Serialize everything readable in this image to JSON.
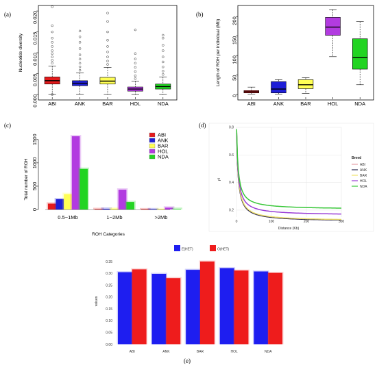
{
  "colors": {
    "ABI": "#e41a1c",
    "ANK": "#1f1fd6",
    "BAR": "#ffff55",
    "HOL": "#b23be0",
    "NDA": "#22d422",
    "d_ABI": "#e6a0a6",
    "d_ANK": "#2b2b50",
    "d_BAR": "#f0e36c",
    "d_HOL": "#9a3ed6",
    "d_NDA": "#39c739"
  },
  "chart_data": [
    {
      "panel": "(a)",
      "type": "box",
      "ylabel": "Nucleotide diversity",
      "ylim": [
        0,
        0.021
      ],
      "yticks": [
        "0.000",
        "0.005",
        "0.010",
        "0.015",
        "0.020"
      ],
      "categories": [
        "ABI",
        "ANK",
        "BAR",
        "HOL",
        "NDA"
      ],
      "boxes": [
        {
          "min": 0.0,
          "q1": 0.0025,
          "median": 0.0033,
          "q3": 0.0042,
          "max": 0.0068,
          "outliers": [
            0.0075,
            0.0082,
            0.009,
            0.0098,
            0.0105,
            0.0115,
            0.0125,
            0.0135,
            0.015,
            0.0165,
            0.021,
            0.0
          ]
        },
        {
          "min": 0.0,
          "q1": 0.0021,
          "median": 0.0027,
          "q3": 0.0033,
          "max": 0.0052,
          "outliers": [
            0.0058,
            0.0066,
            0.0075,
            0.0085,
            0.0095,
            0.011,
            0.0125,
            0.0138,
            0.0152
          ]
        },
        {
          "min": 0.0,
          "q1": 0.0025,
          "median": 0.0032,
          "q3": 0.0041,
          "max": 0.0065,
          "outliers": [
            0.0072,
            0.008,
            0.009,
            0.0102,
            0.0115,
            0.013,
            0.015,
            0.0175,
            0.0195
          ]
        },
        {
          "min": 0.0,
          "q1": 0.0008,
          "median": 0.0013,
          "q3": 0.0018,
          "max": 0.0032,
          "outliers": [
            0.0038,
            0.0045,
            0.0055,
            0.0065,
            0.0075,
            0.0085,
            0.0098,
            0.0155
          ]
        },
        {
          "min": 0.0,
          "q1": 0.0013,
          "median": 0.0019,
          "q3": 0.0025,
          "max": 0.0042,
          "outliers": [
            0.0048,
            0.0056,
            0.0066,
            0.0078,
            0.009,
            0.0105,
            0.0118,
            0.0135,
            0.0142
          ]
        }
      ]
    },
    {
      "panel": "(b)",
      "type": "box",
      "ylabel": "Length of ROH per individual (Mb)",
      "ylim": [
        0,
        225
      ],
      "yticks": [
        "0",
        "50",
        "100",
        "150",
        "200"
      ],
      "categories": [
        "ABI",
        "ANK",
        "BAR",
        "HOL",
        "NDA"
      ],
      "boxes": [
        {
          "min": 1,
          "q1": 4,
          "median": 7,
          "q3": 10,
          "max": 19
        },
        {
          "min": 1,
          "q1": 4,
          "median": 14,
          "q3": 33,
          "max": 38
        },
        {
          "min": 3,
          "q1": 15,
          "median": 25,
          "q3": 38,
          "max": 43
        },
        {
          "min": 97,
          "q1": 152,
          "median": 173,
          "q3": 198,
          "max": 218
        },
        {
          "min": 25,
          "q1": 65,
          "median": 95,
          "q3": 143,
          "max": 187
        }
      ]
    },
    {
      "panel": "(c)",
      "type": "bar",
      "xlabel": "ROH Categories",
      "ylabel": "Total number of ROH",
      "ylim": [
        0,
        1600
      ],
      "yticks": [
        "0",
        "500",
        "1000",
        "1500"
      ],
      "categories": [
        "0.5~1Mb",
        "1~2Mb",
        ">2Mb"
      ],
      "series": [
        {
          "name": "ABI",
          "values": [
            125,
            8,
            2
          ]
        },
        {
          "name": "ANK",
          "values": [
            220,
            15,
            3
          ]
        },
        {
          "name": "BAR",
          "values": [
            330,
            20,
            5
          ]
        },
        {
          "name": "HOL",
          "values": [
            1570,
            425,
            40
          ]
        },
        {
          "name": "NDA",
          "values": [
            870,
            160,
            12
          ]
        }
      ],
      "legend": "top-right"
    },
    {
      "panel": "(d)",
      "type": "line",
      "xlabel": "Distance (Kb)",
      "ylabel": "r²",
      "xlim": [
        0,
        300
      ],
      "ylim": [
        0.15,
        0.8
      ],
      "xticks": [
        "0",
        "100",
        "200",
        "300"
      ],
      "yticks": [
        "0.2",
        "0.4",
        "0.6",
        "0.8"
      ],
      "legend_title": "Breed",
      "series": [
        {
          "name": "ABI",
          "asym": 0.118,
          "amp": 0.68
        },
        {
          "name": "ANK",
          "asym": 0.118,
          "amp": 0.68
        },
        {
          "name": "BAR",
          "asym": 0.122,
          "amp": 0.7
        },
        {
          "name": "HOL",
          "asym": 0.162,
          "amp": 0.65
        },
        {
          "name": "NDA",
          "asym": 0.205,
          "amp": 0.62
        }
      ]
    },
    {
      "panel": "(e)",
      "type": "bar",
      "ylabel": "values",
      "ylim": [
        0,
        0.35
      ],
      "yticks": [
        "0.00",
        "0.05",
        "0.10",
        "0.15",
        "0.20",
        "0.25",
        "0.30",
        "0.35"
      ],
      "categories": [
        "ABI",
        "ANK",
        "BAR",
        "HOL",
        "NDA"
      ],
      "series": [
        {
          "name": "E(HET)",
          "color": "#1e1ef0",
          "values": [
            0.305,
            0.298,
            0.315,
            0.322,
            0.308
          ]
        },
        {
          "name": "O(HET)",
          "color": "#ee1c1c",
          "values": [
            0.317,
            0.28,
            0.35,
            0.312,
            0.302
          ]
        }
      ],
      "legend": "top"
    }
  ]
}
